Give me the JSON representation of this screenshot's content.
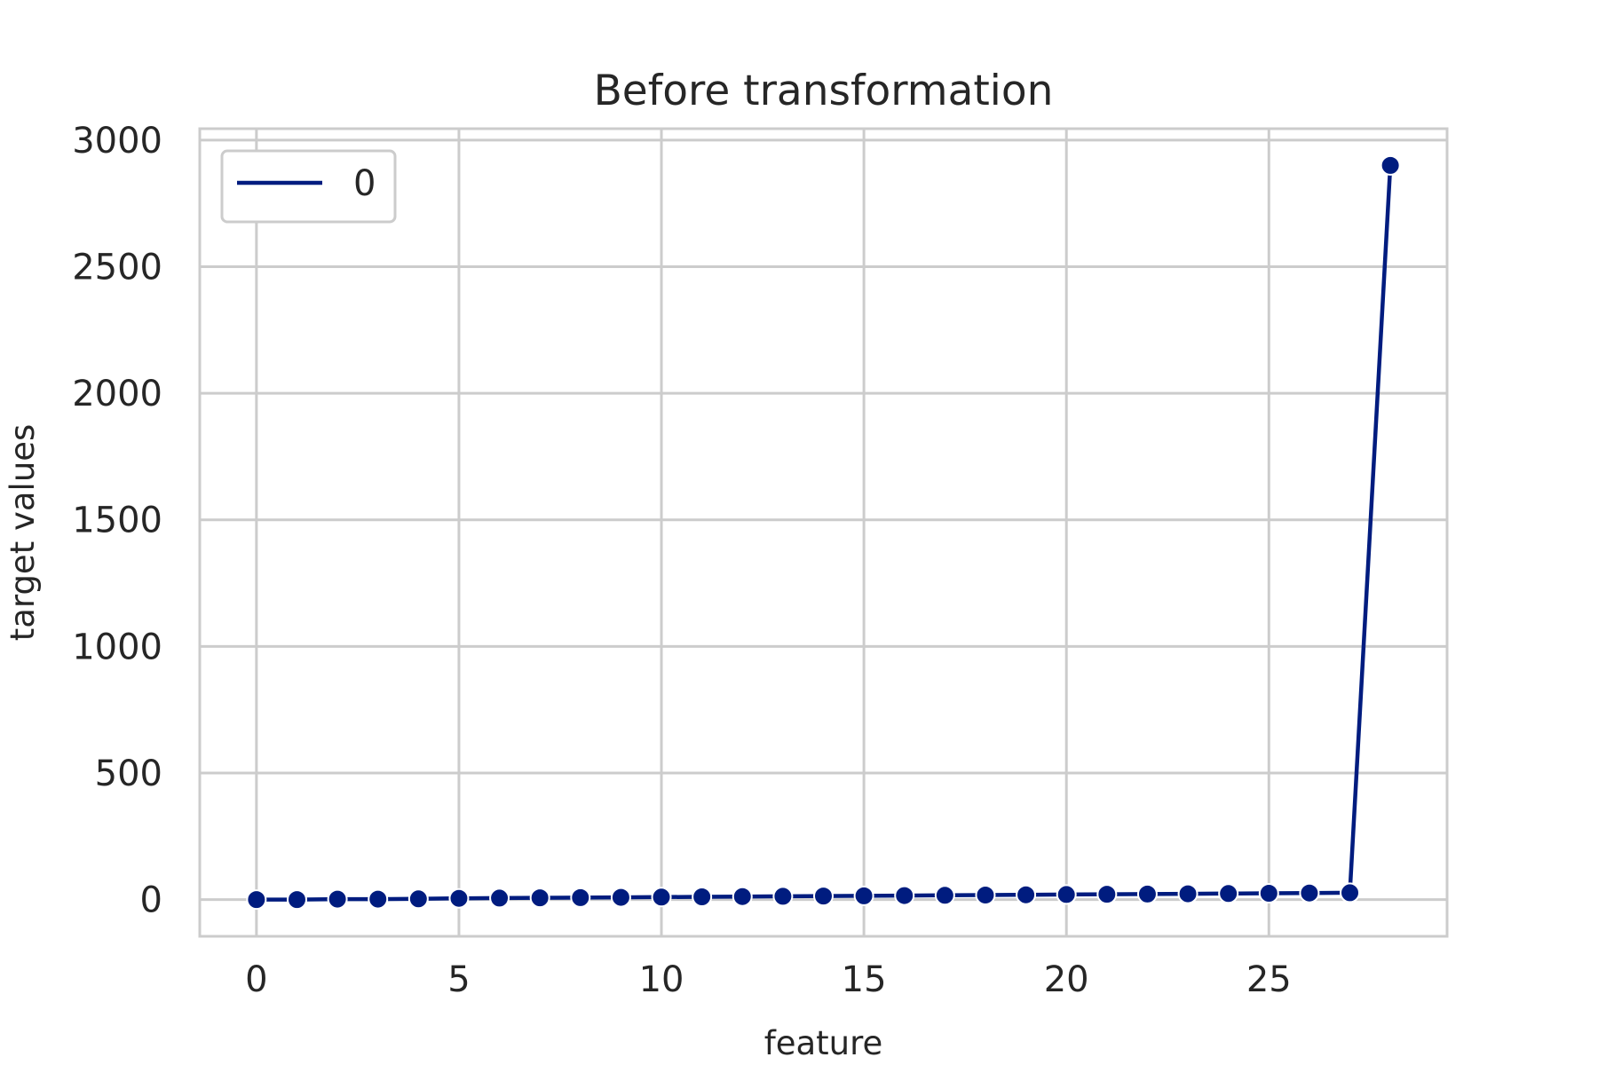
{
  "chart_data": {
    "type": "line",
    "title": "Before transformation",
    "xlabel": "feature",
    "ylabel": "target values",
    "xlim": [
      -1.4,
      29.4
    ],
    "ylim": [
      -145,
      3045
    ],
    "xticks": [
      0,
      5,
      10,
      15,
      20,
      25
    ],
    "yticks": [
      0,
      500,
      1000,
      1500,
      2000,
      2500,
      3000
    ],
    "grid": true,
    "legend": {
      "placement": "top-left",
      "entries": [
        "0"
      ]
    },
    "colors": {
      "series": "#001c7f",
      "grid": "#cccccc",
      "background": "#ffffff"
    },
    "series": [
      {
        "name": "0",
        "marker": "circle",
        "x": [
          0,
          1,
          2,
          3,
          4,
          5,
          6,
          7,
          8,
          9,
          10,
          11,
          12,
          13,
          14,
          15,
          16,
          17,
          18,
          19,
          20,
          21,
          22,
          23,
          24,
          25,
          26,
          27,
          28
        ],
        "values": [
          0,
          0,
          2,
          2,
          3,
          5,
          6,
          7,
          8,
          9,
          10,
          11,
          12,
          13,
          14,
          15,
          16,
          17,
          18,
          19,
          20,
          21,
          22,
          23,
          24,
          25,
          26,
          27,
          2900
        ]
      }
    ]
  }
}
